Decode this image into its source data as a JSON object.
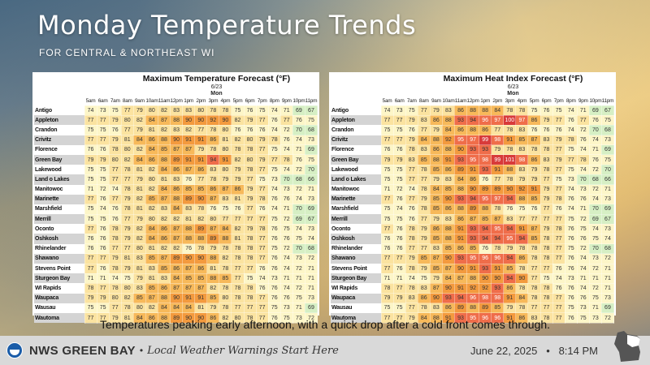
{
  "header": {
    "title": "Monday Temperature Trends",
    "subtitle": "For Central & Northeast WI"
  },
  "hours": [
    "5am",
    "6am",
    "7am",
    "8am",
    "9am",
    "10am",
    "11am",
    "12pm",
    "1pm",
    "2pm",
    "3pm",
    "4pm",
    "5pm",
    "6pm",
    "7pm",
    "8pm",
    "9pm",
    "10pm",
    "11pm"
  ],
  "tables": [
    {
      "title": "Maximum Temperature Forecast (°F)",
      "date": "6/23",
      "day": "Mon",
      "rows": [
        {
          "name": "Antigo",
          "values": [
            74,
            73,
            75,
            77,
            79,
            80,
            82,
            83,
            83,
            80,
            78,
            78,
            75,
            76,
            75,
            74,
            71,
            69,
            67
          ]
        },
        {
          "name": "Appleton",
          "values": [
            77,
            77,
            79,
            80,
            82,
            84,
            87,
            88,
            90,
            90,
            92,
            90,
            82,
            79,
            77,
            76,
            77,
            76,
            75
          ]
        },
        {
          "name": "Crandon",
          "values": [
            75,
            75,
            76,
            77,
            79,
            81,
            82,
            83,
            82,
            77,
            78,
            80,
            76,
            76,
            76,
            74,
            72,
            70,
            68
          ]
        },
        {
          "name": "Crivitz",
          "values": [
            77,
            77,
            79,
            81,
            84,
            86,
            88,
            90,
            91,
            91,
            86,
            81,
            82,
            80,
            79,
            78,
            76,
            74,
            73
          ]
        },
        {
          "name": "Florence",
          "values": [
            76,
            76,
            78,
            80,
            82,
            84,
            85,
            87,
            87,
            79,
            78,
            80,
            78,
            78,
            77,
            75,
            74,
            71,
            69
          ]
        },
        {
          "name": "Green Bay",
          "values": [
            79,
            79,
            80,
            82,
            84,
            86,
            88,
            89,
            91,
            91,
            94,
            91,
            82,
            80,
            79,
            77,
            78,
            76,
            75
          ]
        },
        {
          "name": "Lakewood",
          "values": [
            75,
            75,
            77,
            78,
            81,
            82,
            84,
            86,
            87,
            86,
            83,
            80,
            79,
            78,
            77,
            75,
            74,
            72,
            70
          ]
        },
        {
          "name": "Land o Lakes",
          "values": [
            75,
            75,
            77,
            77,
            79,
            80,
            81,
            83,
            76,
            77,
            78,
            79,
            79,
            77,
            75,
            73,
            70,
            68,
            66
          ]
        },
        {
          "name": "Manitowoc",
          "values": [
            71,
            72,
            74,
            78,
            81,
            82,
            84,
            86,
            85,
            85,
            86,
            87,
            86,
            79,
            77,
            74,
            73,
            72,
            71
          ]
        },
        {
          "name": "Marinette",
          "values": [
            77,
            76,
            77,
            79,
            82,
            85,
            87,
            88,
            89,
            90,
            87,
            83,
            81,
            79,
            78,
            76,
            76,
            74,
            73
          ]
        },
        {
          "name": "Marshfield",
          "values": [
            75,
            74,
            76,
            78,
            81,
            82,
            83,
            84,
            83,
            78,
            76,
            75,
            76,
            77,
            76,
            74,
            71,
            70,
            69
          ]
        },
        {
          "name": "Merrill",
          "values": [
            75,
            75,
            76,
            77,
            79,
            80,
            82,
            82,
            81,
            82,
            80,
            77,
            77,
            77,
            77,
            75,
            72,
            69,
            67
          ]
        },
        {
          "name": "Oconto",
          "values": [
            77,
            76,
            78,
            79,
            82,
            84,
            86,
            87,
            88,
            89,
            87,
            84,
            82,
            79,
            78,
            76,
            75,
            74,
            73
          ]
        },
        {
          "name": "Oshkosh",
          "values": [
            76,
            76,
            78,
            79,
            82,
            84,
            86,
            87,
            88,
            88,
            89,
            88,
            81,
            78,
            77,
            76,
            76,
            75,
            74
          ]
        },
        {
          "name": "Rhinelander",
          "values": [
            76,
            76,
            77,
            77,
            80,
            81,
            82,
            82,
            76,
            78,
            79,
            78,
            78,
            78,
            77,
            75,
            72,
            70,
            68
          ]
        },
        {
          "name": "Shawano",
          "values": [
            77,
            77,
            79,
            81,
            83,
            85,
            87,
            89,
            90,
            90,
            88,
            82,
            78,
            78,
            77,
            76,
            74,
            73,
            72
          ]
        },
        {
          "name": "Stevens Point",
          "values": [
            77,
            76,
            78,
            79,
            81,
            83,
            85,
            86,
            87,
            86,
            81,
            78,
            77,
            77,
            76,
            76,
            74,
            72,
            71
          ]
        },
        {
          "name": "Sturgeon Bay",
          "values": [
            71,
            71,
            74,
            75,
            79,
            81,
            83,
            84,
            85,
            85,
            88,
            85,
            77,
            75,
            74,
            73,
            71,
            71,
            71
          ]
        },
        {
          "name": "WI Rapids",
          "values": [
            78,
            77,
            78,
            80,
            83,
            85,
            86,
            87,
            87,
            87,
            82,
            78,
            78,
            78,
            76,
            76,
            74,
            72,
            71
          ]
        },
        {
          "name": "Waupaca",
          "values": [
            79,
            79,
            80,
            82,
            85,
            87,
            88,
            90,
            91,
            91,
            85,
            80,
            78,
            78,
            77,
            76,
            76,
            75,
            73
          ]
        },
        {
          "name": "Wausau",
          "values": [
            75,
            75,
            77,
            78,
            80,
            82,
            84,
            84,
            84,
            81,
            79,
            78,
            77,
            77,
            77,
            75,
            73,
            71,
            69
          ]
        },
        {
          "name": "Wautoma",
          "values": [
            77,
            77,
            79,
            81,
            84,
            86,
            88,
            89,
            90,
            90,
            86,
            82,
            80,
            78,
            77,
            76,
            75,
            73,
            72
          ]
        }
      ]
    },
    {
      "title": "Maximum Heat Index Forecast (°F)",
      "date": "6/23",
      "day": "Mon",
      "rows": [
        {
          "name": "Antigo",
          "values": [
            74,
            73,
            75,
            77,
            79,
            83,
            86,
            88,
            88,
            84,
            78,
            78,
            75,
            76,
            75,
            74,
            71,
            69,
            67
          ]
        },
        {
          "name": "Appleton",
          "values": [
            77,
            77,
            79,
            83,
            86,
            88,
            93,
            94,
            96,
            97,
            100,
            97,
            86,
            79,
            77,
            76,
            77,
            76,
            75
          ]
        },
        {
          "name": "Crandon",
          "values": [
            75,
            75,
            76,
            77,
            79,
            84,
            86,
            88,
            86,
            77,
            78,
            83,
            76,
            76,
            76,
            74,
            72,
            70,
            68
          ]
        },
        {
          "name": "Crivitz",
          "values": [
            77,
            77,
            79,
            84,
            88,
            92,
            95,
            97,
            99,
            98,
            91,
            85,
            87,
            83,
            79,
            78,
            76,
            74,
            73
          ]
        },
        {
          "name": "Florence",
          "values": [
            76,
            76,
            78,
            83,
            86,
            88,
            90,
            93,
            93,
            79,
            78,
            83,
            78,
            78,
            77,
            75,
            74,
            71,
            69
          ]
        },
        {
          "name": "Green Bay",
          "values": [
            79,
            79,
            83,
            85,
            88,
            91,
            93,
            95,
            98,
            99,
            101,
            98,
            86,
            83,
            79,
            77,
            78,
            76,
            75
          ]
        },
        {
          "name": "Lakewood",
          "values": [
            75,
            75,
            77,
            78,
            85,
            86,
            89,
            91,
            93,
            91,
            88,
            83,
            79,
            78,
            77,
            75,
            74,
            72,
            70
          ]
        },
        {
          "name": "Land o Lakes",
          "values": [
            75,
            75,
            77,
            77,
            79,
            83,
            84,
            86,
            76,
            77,
            78,
            79,
            79,
            77,
            75,
            73,
            70,
            68,
            66
          ]
        },
        {
          "name": "Manitowoc",
          "values": [
            71,
            72,
            74,
            78,
            84,
            85,
            88,
            90,
            89,
            89,
            90,
            92,
            91,
            79,
            77,
            74,
            73,
            72,
            71
          ]
        },
        {
          "name": "Marinette",
          "values": [
            77,
            76,
            77,
            79,
            85,
            90,
            93,
            94,
            95,
            97,
            94,
            88,
            85,
            79,
            78,
            76,
            76,
            74,
            73
          ]
        },
        {
          "name": "Marshfield",
          "values": [
            75,
            74,
            76,
            78,
            85,
            86,
            88,
            89,
            88,
            78,
            76,
            75,
            76,
            77,
            76,
            74,
            71,
            70,
            69
          ]
        },
        {
          "name": "Merrill",
          "values": [
            75,
            75,
            76,
            77,
            79,
            83,
            86,
            87,
            85,
            87,
            83,
            77,
            77,
            77,
            77,
            75,
            72,
            69,
            67
          ]
        },
        {
          "name": "Oconto",
          "values": [
            77,
            76,
            78,
            79,
            86,
            88,
            91,
            93,
            94,
            95,
            94,
            91,
            87,
            79,
            78,
            76,
            75,
            74,
            73
          ]
        },
        {
          "name": "Oshkosh",
          "values": [
            76,
            76,
            78,
            79,
            85,
            88,
            91,
            93,
            94,
            94,
            95,
            94,
            85,
            78,
            77,
            76,
            76,
            75,
            74
          ]
        },
        {
          "name": "Rhinelander",
          "values": [
            76,
            76,
            77,
            77,
            83,
            85,
            86,
            85,
            76,
            78,
            79,
            78,
            78,
            78,
            77,
            75,
            72,
            70,
            68
          ]
        },
        {
          "name": "Shawano",
          "values": [
            77,
            77,
            79,
            85,
            87,
            90,
            93,
            95,
            96,
            96,
            94,
            86,
            78,
            78,
            77,
            76,
            74,
            73,
            72
          ]
        },
        {
          "name": "Stevens Point",
          "values": [
            77,
            76,
            78,
            79,
            85,
            87,
            90,
            91,
            93,
            91,
            85,
            78,
            77,
            77,
            76,
            76,
            74,
            72,
            71
          ]
        },
        {
          "name": "Sturgeon Bay",
          "values": [
            71,
            71,
            74,
            75,
            79,
            84,
            87,
            88,
            90,
            90,
            94,
            90,
            77,
            75,
            74,
            73,
            71,
            71,
            71
          ]
        },
        {
          "name": "WI Rapids",
          "values": [
            78,
            77,
            78,
            83,
            87,
            90,
            91,
            92,
            92,
            93,
            86,
            78,
            78,
            78,
            76,
            76,
            74,
            72,
            71
          ]
        },
        {
          "name": "Waupaca",
          "values": [
            79,
            79,
            83,
            86,
            90,
            93,
            94,
            96,
            98,
            98,
            91,
            84,
            78,
            78,
            77,
            76,
            76,
            75,
            73
          ]
        },
        {
          "name": "Wausau",
          "values": [
            75,
            75,
            77,
            78,
            83,
            86,
            89,
            88,
            89,
            85,
            79,
            78,
            77,
            77,
            77,
            75,
            73,
            71,
            69
          ]
        },
        {
          "name": "Wautoma",
          "values": [
            77,
            77,
            79,
            84,
            88,
            91,
            93,
            95,
            96,
            96,
            91,
            86,
            83,
            78,
            77,
            76,
            75,
            73,
            72
          ]
        }
      ]
    }
  ],
  "caption": "Temperatures peaking early afternoon, with a quick drop after a cold front comes through.",
  "footer": {
    "brand": "NWS GREEN BAY",
    "separator": "•",
    "tagline": "Local Weather Warnings Start Here",
    "date": "June 22, 2025",
    "time": "8:14 PM",
    "datetime": "June 22, 2025   •   8:14 PM"
  },
  "colors": {
    "cool": "#d6efc4",
    "mild": "#fdf6c8",
    "warm": "#fbe3a0",
    "hot": "#f7b95a",
    "hotter": "#f39a3e",
    "very_hot": "#ef6d4a",
    "extreme": "#d83a3a"
  }
}
